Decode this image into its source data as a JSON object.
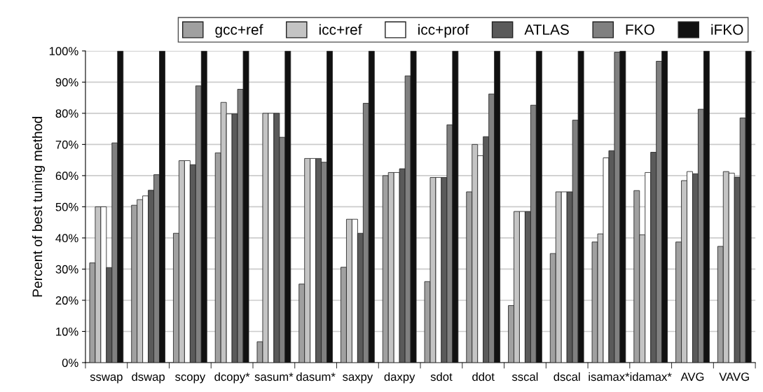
{
  "chart_data": {
    "type": "bar",
    "ylabel": "Percent of best tuning method",
    "categories": [
      "sswap",
      "dswap",
      "scopy",
      "dcopy*",
      "sasum*",
      "dasum*",
      "saxpy",
      "daxpy",
      "sdot",
      "ddot",
      "sscal",
      "dscal",
      "isamax*",
      "idamax*",
      "AVG",
      "VAVG"
    ],
    "series": [
      {
        "name": "gcc+ref",
        "color": "#a0a0a0",
        "values": [
          32,
          50.5,
          41.5,
          67.3,
          6.7,
          25.2,
          30.6,
          60,
          26,
          54.8,
          18.3,
          35,
          38.7,
          55.2,
          38.7,
          37.3
        ]
      },
      {
        "name": "icc+ref",
        "color": "#c4c4c4",
        "values": [
          50,
          52.3,
          64.8,
          83.5,
          80,
          65.5,
          46,
          61,
          59.4,
          70,
          48.5,
          54.8,
          41.3,
          41,
          58.4,
          61.3
        ]
      },
      {
        "name": "icc+prof",
        "color": "#ffffff",
        "values": [
          50,
          53.5,
          64.8,
          79.8,
          80,
          65.5,
          46,
          61,
          59.4,
          66.4,
          48.5,
          54.8,
          65.7,
          61,
          61.3,
          60.8
        ]
      },
      {
        "name": "ATLAS",
        "color": "#5a5a5a",
        "values": [
          30.5,
          55.3,
          63.5,
          79.8,
          80,
          65.5,
          41.5,
          62.2,
          59.4,
          72.5,
          48.5,
          54.8,
          68,
          67.5,
          60.6,
          59.5
        ]
      },
      {
        "name": "FKO",
        "color": "#808080",
        "values": [
          70.5,
          60.3,
          88.8,
          87.7,
          72.3,
          64.3,
          83.2,
          92,
          76.3,
          86.2,
          82.6,
          77.8,
          99.6,
          96.7,
          81.3,
          78.5
        ]
      },
      {
        "name": "iFKO",
        "color": "#111111",
        "values": [
          100,
          100,
          100,
          100,
          100,
          100,
          100,
          100,
          100,
          100,
          100,
          100,
          100,
          100,
          100,
          100
        ]
      }
    ],
    "ylim": [
      0,
      100
    ],
    "yticks": [
      {
        "value": 0,
        "label": "0%"
      },
      {
        "value": 10,
        "label": "10%"
      },
      {
        "value": 20,
        "label": "20%"
      },
      {
        "value": 30,
        "label": "30%"
      },
      {
        "value": 40,
        "label": "40%"
      },
      {
        "value": 50,
        "label": "50%"
      },
      {
        "value": 60,
        "label": "60%"
      },
      {
        "value": 70,
        "label": "70%"
      },
      {
        "value": 80,
        "label": "80%"
      },
      {
        "value": 90,
        "label": "90%"
      },
      {
        "value": 100,
        "label": "100%"
      }
    ],
    "grid": "y",
    "legend": "top"
  }
}
